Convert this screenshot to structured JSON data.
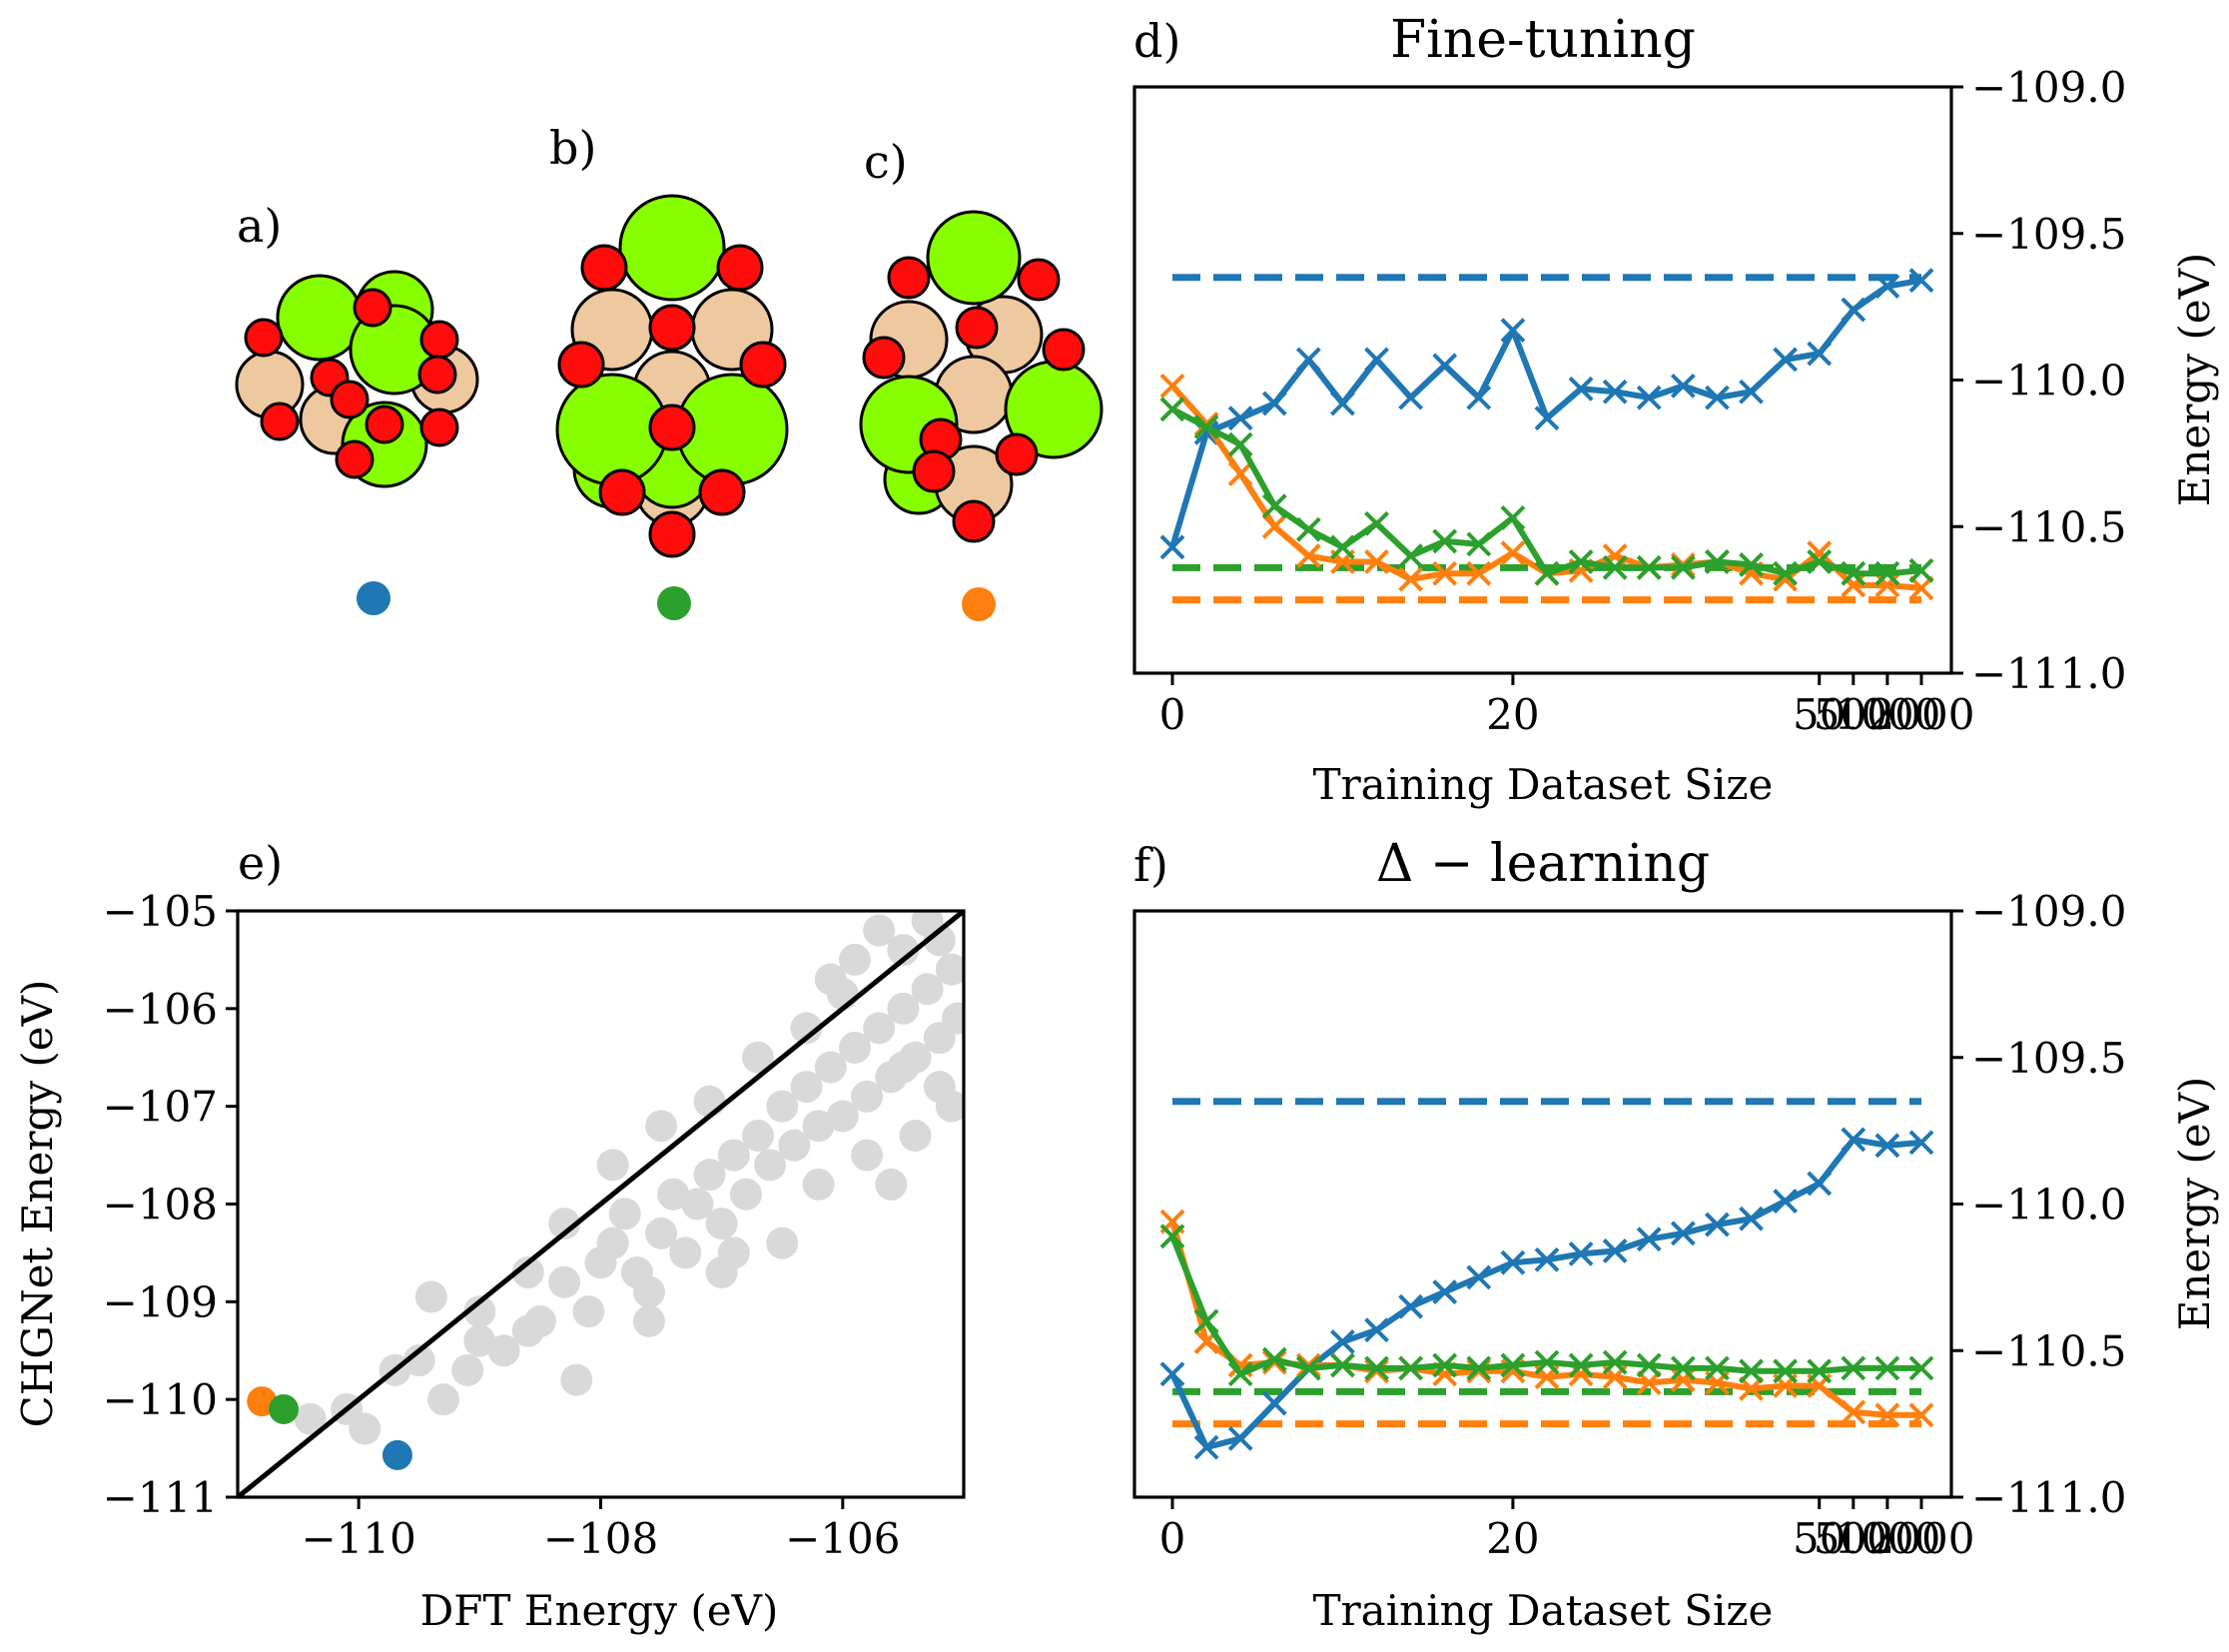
{
  "colors": {
    "blue": "#1f77b4",
    "green": "#2ca02c",
    "orange": "#ff7f0e",
    "gray": "#d9d9d9",
    "atom_green": "#88ff00",
    "atom_tan": "#eec89e",
    "atom_red": "#ff0d0d"
  },
  "structures": [
    {
      "label": "a)",
      "marker_color": "blue"
    },
    {
      "label": "b)",
      "marker_color": "green"
    },
    {
      "label": "c)",
      "marker_color": "orange"
    }
  ],
  "chart_data": [
    {
      "panel": "d)",
      "type": "line",
      "title": "Fine-tuning",
      "xlabel": "Training Dataset Size",
      "ylabel": "Energy (eV)",
      "ylim": [
        -111.0,
        -109.0
      ],
      "yticks": [
        -109.0,
        -109.5,
        -110.0,
        -110.5,
        -111.0
      ],
      "ytick_labels": [
        "−109.0",
        "−109.5",
        "−110.0",
        "−110.5",
        "−111.0"
      ],
      "xtick_positions": [
        0,
        20,
        50,
        500,
        1000,
        2000
      ],
      "xtick_labels": [
        "0",
        "20",
        "50",
        "500",
        "1000",
        "2000"
      ],
      "x": [
        0,
        2,
        4,
        6,
        8,
        10,
        12,
        14,
        16,
        18,
        20,
        22,
        25,
        28,
        31,
        34,
        37,
        40,
        45,
        50,
        500,
        1000,
        2000
      ],
      "series": [
        {
          "name": "a",
          "color": "blue",
          "values": [
            -110.57,
            -110.18,
            -110.13,
            -110.08,
            -109.93,
            -110.08,
            -109.93,
            -110.06,
            -109.95,
            -110.06,
            -109.83,
            -110.13,
            -110.03,
            -110.04,
            -110.06,
            -110.02,
            -110.06,
            -110.04,
            -109.93,
            -109.91,
            -109.76,
            -109.68,
            -109.66
          ]
        },
        {
          "name": "c",
          "color": "orange",
          "values": [
            -110.02,
            -110.15,
            -110.32,
            -110.5,
            -110.6,
            -110.62,
            -110.62,
            -110.68,
            -110.66,
            -110.66,
            -110.59,
            -110.66,
            -110.65,
            -110.6,
            -110.64,
            -110.63,
            -110.62,
            -110.66,
            -110.68,
            -110.59,
            -110.7,
            -110.7,
            -110.71
          ]
        },
        {
          "name": "b",
          "color": "green",
          "values": [
            -110.1,
            -110.16,
            -110.22,
            -110.43,
            -110.51,
            -110.57,
            -110.49,
            -110.6,
            -110.55,
            -110.56,
            -110.47,
            -110.66,
            -110.62,
            -110.64,
            -110.64,
            -110.64,
            -110.62,
            -110.63,
            -110.66,
            -110.62,
            -110.66,
            -110.66,
            -110.65
          ]
        }
      ],
      "references": [
        {
          "color": "blue",
          "value": -109.65
        },
        {
          "color": "green",
          "value": -110.64
        },
        {
          "color": "orange",
          "value": -110.75
        }
      ]
    },
    {
      "panel": "f)",
      "type": "line",
      "title": "Δ − learning",
      "xlabel": "Training Dataset Size",
      "ylabel": "Energy (eV)",
      "ylim": [
        -111.0,
        -109.0
      ],
      "yticks": [
        -109.0,
        -109.5,
        -110.0,
        -110.5,
        -111.0
      ],
      "ytick_labels": [
        "−109.0",
        "−109.5",
        "−110.0",
        "−110.5",
        "−111.0"
      ],
      "xtick_positions": [
        0,
        20,
        50,
        500,
        1000,
        2000
      ],
      "xtick_labels": [
        "0",
        "20",
        "50",
        "500",
        "1000",
        "2000"
      ],
      "x": [
        0,
        2,
        4,
        6,
        8,
        10,
        12,
        14,
        16,
        18,
        20,
        22,
        25,
        28,
        31,
        34,
        37,
        40,
        45,
        50,
        500,
        1000,
        2000
      ],
      "series": [
        {
          "name": "a",
          "color": "blue",
          "values": [
            -110.58,
            -110.83,
            -110.8,
            -110.68,
            -110.56,
            -110.47,
            -110.43,
            -110.35,
            -110.3,
            -110.25,
            -110.2,
            -110.19,
            -110.17,
            -110.16,
            -110.12,
            -110.1,
            -110.07,
            -110.05,
            -109.99,
            -109.93,
            -109.78,
            -109.8,
            -109.79
          ]
        },
        {
          "name": "c",
          "color": "orange",
          "values": [
            -110.06,
            -110.47,
            -110.55,
            -110.54,
            -110.55,
            -110.55,
            -110.57,
            -110.56,
            -110.58,
            -110.57,
            -110.57,
            -110.59,
            -110.58,
            -110.59,
            -110.61,
            -110.6,
            -110.61,
            -110.63,
            -110.62,
            -110.62,
            -110.71,
            -110.72,
            -110.72
          ]
        },
        {
          "name": "b",
          "color": "green",
          "values": [
            -110.11,
            -110.4,
            -110.58,
            -110.53,
            -110.56,
            -110.55,
            -110.56,
            -110.56,
            -110.55,
            -110.56,
            -110.55,
            -110.54,
            -110.55,
            -110.54,
            -110.55,
            -110.56,
            -110.56,
            -110.57,
            -110.57,
            -110.57,
            -110.56,
            -110.56,
            -110.56
          ]
        }
      ],
      "references": [
        {
          "color": "blue",
          "value": -109.65
        },
        {
          "color": "green",
          "value": -110.64
        },
        {
          "color": "orange",
          "value": -110.75
        }
      ]
    },
    {
      "panel": "e)",
      "type": "scatter",
      "xlabel": "DFT Energy (eV)",
      "ylabel": "CHGNet Energy (eV)",
      "xlim": [
        -111.0,
        -105.0
      ],
      "ylim": [
        -111.0,
        -105.0
      ],
      "xticks": [
        -110,
        -108,
        -106
      ],
      "xtick_labels": [
        "−110",
        "−108",
        "−106"
      ],
      "yticks": [
        -105,
        -106,
        -107,
        -108,
        -109,
        -110,
        -111
      ],
      "ytick_labels": [
        "−105",
        "−106",
        "−107",
        "−108",
        "−109",
        "−110",
        "−111"
      ],
      "diagonal": {
        "from": [
          -111.0,
          -111.0
        ],
        "to": [
          -105.0,
          -105.0
        ]
      },
      "background_points": [
        [
          -110.4,
          -110.2
        ],
        [
          -110.1,
          -110.1
        ],
        [
          -109.95,
          -110.3
        ],
        [
          -109.7,
          -109.7
        ],
        [
          -109.5,
          -109.6
        ],
        [
          -109.3,
          -110.0
        ],
        [
          -109.4,
          -108.95
        ],
        [
          -109.1,
          -109.7
        ],
        [
          -109.0,
          -109.4
        ],
        [
          -108.8,
          -109.5
        ],
        [
          -108.6,
          -109.3
        ],
        [
          -108.5,
          -109.2
        ],
        [
          -108.2,
          -109.8
        ],
        [
          -108.3,
          -108.8
        ],
        [
          -108.0,
          -108.6
        ],
        [
          -107.9,
          -108.4
        ],
        [
          -107.7,
          -108.7
        ],
        [
          -107.6,
          -109.2
        ],
        [
          -107.8,
          -108.1
        ],
        [
          -107.5,
          -108.3
        ],
        [
          -107.4,
          -107.9
        ],
        [
          -107.3,
          -108.5
        ],
        [
          -107.2,
          -108.0
        ],
        [
          -107.1,
          -107.7
        ],
        [
          -107.0,
          -108.2
        ],
        [
          -106.9,
          -107.5
        ],
        [
          -106.8,
          -107.9
        ],
        [
          -106.7,
          -107.3
        ],
        [
          -106.6,
          -107.6
        ],
        [
          -106.5,
          -107.0
        ],
        [
          -106.4,
          -107.4
        ],
        [
          -106.3,
          -106.8
        ],
        [
          -106.2,
          -107.2
        ],
        [
          -106.1,
          -106.6
        ],
        [
          -106.0,
          -107.1
        ],
        [
          -105.9,
          -106.4
        ],
        [
          -105.8,
          -106.9
        ],
        [
          -105.7,
          -106.2
        ],
        [
          -105.6,
          -106.7
        ],
        [
          -105.5,
          -106.0
        ],
        [
          -105.4,
          -106.5
        ],
        [
          -105.3,
          -105.8
        ],
        [
          -105.2,
          -106.3
        ],
        [
          -105.1,
          -105.6
        ],
        [
          -105.05,
          -106.1
        ],
        [
          -105.2,
          -105.3
        ],
        [
          -105.3,
          -105.1
        ],
        [
          -105.5,
          -105.4
        ],
        [
          -106.0,
          -105.85
        ],
        [
          -106.3,
          -106.2
        ],
        [
          -106.7,
          -106.5
        ],
        [
          -107.1,
          -106.95
        ],
        [
          -107.5,
          -107.2
        ],
        [
          -107.9,
          -107.6
        ],
        [
          -108.3,
          -108.2
        ],
        [
          -108.6,
          -108.7
        ],
        [
          -109.0,
          -109.1
        ],
        [
          -107.0,
          -108.7
        ],
        [
          -106.5,
          -108.4
        ],
        [
          -106.2,
          -107.8
        ],
        [
          -105.8,
          -107.5
        ],
        [
          -105.4,
          -107.3
        ],
        [
          -105.1,
          -107.0
        ],
        [
          -105.6,
          -107.8
        ],
        [
          -106.9,
          -108.5
        ],
        [
          -107.6,
          -108.9
        ],
        [
          -108.1,
          -109.1
        ],
        [
          -105.2,
          -106.8
        ],
        [
          -105.5,
          -106.6
        ],
        [
          -105.9,
          -105.5
        ],
        [
          -106.1,
          -105.7
        ],
        [
          -105.7,
          -105.2
        ]
      ],
      "highlight_points": [
        {
          "color": "orange",
          "x": -110.8,
          "y": -110.02
        },
        {
          "color": "green",
          "x": -110.62,
          "y": -110.1
        },
        {
          "color": "blue",
          "x": -109.68,
          "y": -110.57
        }
      ]
    }
  ]
}
